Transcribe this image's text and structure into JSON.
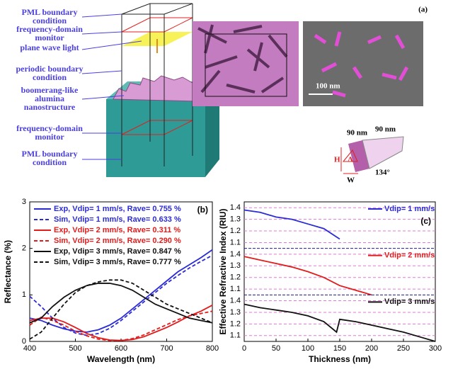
{
  "diagram": {
    "panel_label": "(a)",
    "labels": [
      [
        "PML boundary",
        "condition"
      ],
      [
        "frequency-domain",
        "monitor"
      ],
      [
        "plane wave light"
      ],
      [
        "periodic boundary",
        "condition"
      ],
      [
        "boomerang-like",
        "alumina",
        "nanostructure"
      ],
      [
        "frequency-domain",
        "monitor"
      ],
      [
        "PML boundary",
        "condition"
      ]
    ],
    "scale_bar": "100 nm",
    "dimensions": {
      "length_1": "90 nm",
      "length_2": "90 nm",
      "height": "H",
      "period": "Λ",
      "width": "W",
      "angle": "134°"
    }
  },
  "chart_data": [
    {
      "type": "line",
      "panel_label": "(b)",
      "xlabel": "Wavelength (nm)",
      "ylabel": "Reflectance (%)",
      "x": [
        400,
        425,
        450,
        475,
        500,
        525,
        550,
        575,
        600,
        625,
        650,
        675,
        700,
        725,
        750,
        775,
        800
      ],
      "xlim": [
        400,
        800
      ],
      "xticks": [
        400,
        500,
        600,
        700,
        800
      ],
      "ylim": [
        0,
        3
      ],
      "yticks": [
        0,
        1,
        2,
        3
      ],
      "series": [
        {
          "name": "Exp, Vdip= 1 mm/s, Rave= 0.755 %",
          "color": "#2b2bd6",
          "dash": false,
          "values": [
            0.5,
            0.45,
            0.35,
            0.27,
            0.22,
            0.2,
            0.25,
            0.35,
            0.5,
            0.7,
            0.9,
            1.1,
            1.3,
            1.5,
            1.65,
            1.8,
            1.97
          ]
        },
        {
          "name": "Sim, Vdip= 1 mm/s, Rave= 0.633 %",
          "color": "#2b2bd6",
          "dash": true,
          "values": [
            0.97,
            0.75,
            0.5,
            0.3,
            0.18,
            0.13,
            0.17,
            0.28,
            0.45,
            0.65,
            0.85,
            1.05,
            1.25,
            1.42,
            1.58,
            1.72,
            1.85
          ]
        },
        {
          "name": "Exp, Vdip= 2 mm/s, Rave= 0.311 %",
          "color": "#e21b1b",
          "dash": false,
          "values": [
            0.45,
            0.5,
            0.5,
            0.42,
            0.3,
            0.17,
            0.08,
            0.03,
            0.02,
            0.04,
            0.1,
            0.2,
            0.3,
            0.42,
            0.55,
            0.65,
            0.78
          ]
        },
        {
          "name": "Sim, Vdip= 2 mm/s, Rave= 0.290 %",
          "color": "#e21b1b",
          "dash": true,
          "values": [
            0.35,
            0.52,
            0.45,
            0.35,
            0.22,
            0.12,
            0.05,
            0.02,
            0.02,
            0.06,
            0.14,
            0.25,
            0.36,
            0.47,
            0.55,
            0.6,
            0.65
          ]
        },
        {
          "name": "Exp, Vdip= 3 mm/s, Rave= 0.847 %",
          "color": "#111111",
          "dash": false,
          "values": [
            0.4,
            0.5,
            0.75,
            0.95,
            1.1,
            1.2,
            1.25,
            1.25,
            1.2,
            1.1,
            0.95,
            0.8,
            0.7,
            0.6,
            0.5,
            0.45,
            0.4
          ]
        },
        {
          "name": "Sim, Vdip= 3 mm/s, Rave= 0.777 %",
          "color": "#111111",
          "dash": true,
          "values": [
            0.05,
            0.2,
            0.5,
            0.8,
            1.05,
            1.2,
            1.28,
            1.32,
            1.32,
            1.25,
            1.1,
            0.95,
            0.8,
            0.7,
            0.6,
            0.5,
            0.4
          ]
        }
      ]
    },
    {
      "type": "line",
      "panel_label": "(c)",
      "xlabel": "Thickness (nm)",
      "ylabel": "Effective Refractive Index (RIU)",
      "xlim": [
        0,
        300
      ],
      "xticks": [
        0,
        50,
        100,
        150,
        200,
        250,
        300
      ],
      "grid": true,
      "panels": [
        {
          "ylim": [
            1.05,
            1.45
          ],
          "yticks": [
            1.1,
            1.2,
            1.3,
            1.4
          ],
          "series": [
            {
              "name": "Vdip= 1 mm/s",
              "color": "#2b2bd6",
              "x": [
                0,
                25,
                50,
                75,
                100,
                125,
                150
              ],
              "values": [
                1.38,
                1.36,
                1.32,
                1.3,
                1.26,
                1.22,
                1.13
              ]
            }
          ]
        },
        {
          "ylim": [
            1.05,
            1.45
          ],
          "yticks": [
            1.1,
            1.2,
            1.3,
            1.4
          ],
          "series": [
            {
              "name": "Vdip= 2 mm/s",
              "color": "#e21b1b",
              "x": [
                0,
                25,
                50,
                75,
                100,
                125,
                150,
                175,
                200
              ],
              "values": [
                1.38,
                1.35,
                1.32,
                1.29,
                1.25,
                1.2,
                1.13,
                1.09,
                1.05
              ]
            }
          ]
        },
        {
          "ylim": [
            1.05,
            1.45
          ],
          "yticks": [
            1.1,
            1.2,
            1.3,
            1.4
          ],
          "series": [
            {
              "name": "Vdip= 3 mm/s",
              "color": "#111111",
              "x": [
                0,
                25,
                50,
                75,
                100,
                125,
                145,
                150,
                175,
                200,
                225,
                250,
                275,
                300
              ],
              "values": [
                1.37,
                1.34,
                1.32,
                1.3,
                1.27,
                1.22,
                1.13,
                1.24,
                1.22,
                1.19,
                1.16,
                1.13,
                1.09,
                1.05
              ]
            }
          ]
        }
      ]
    }
  ]
}
